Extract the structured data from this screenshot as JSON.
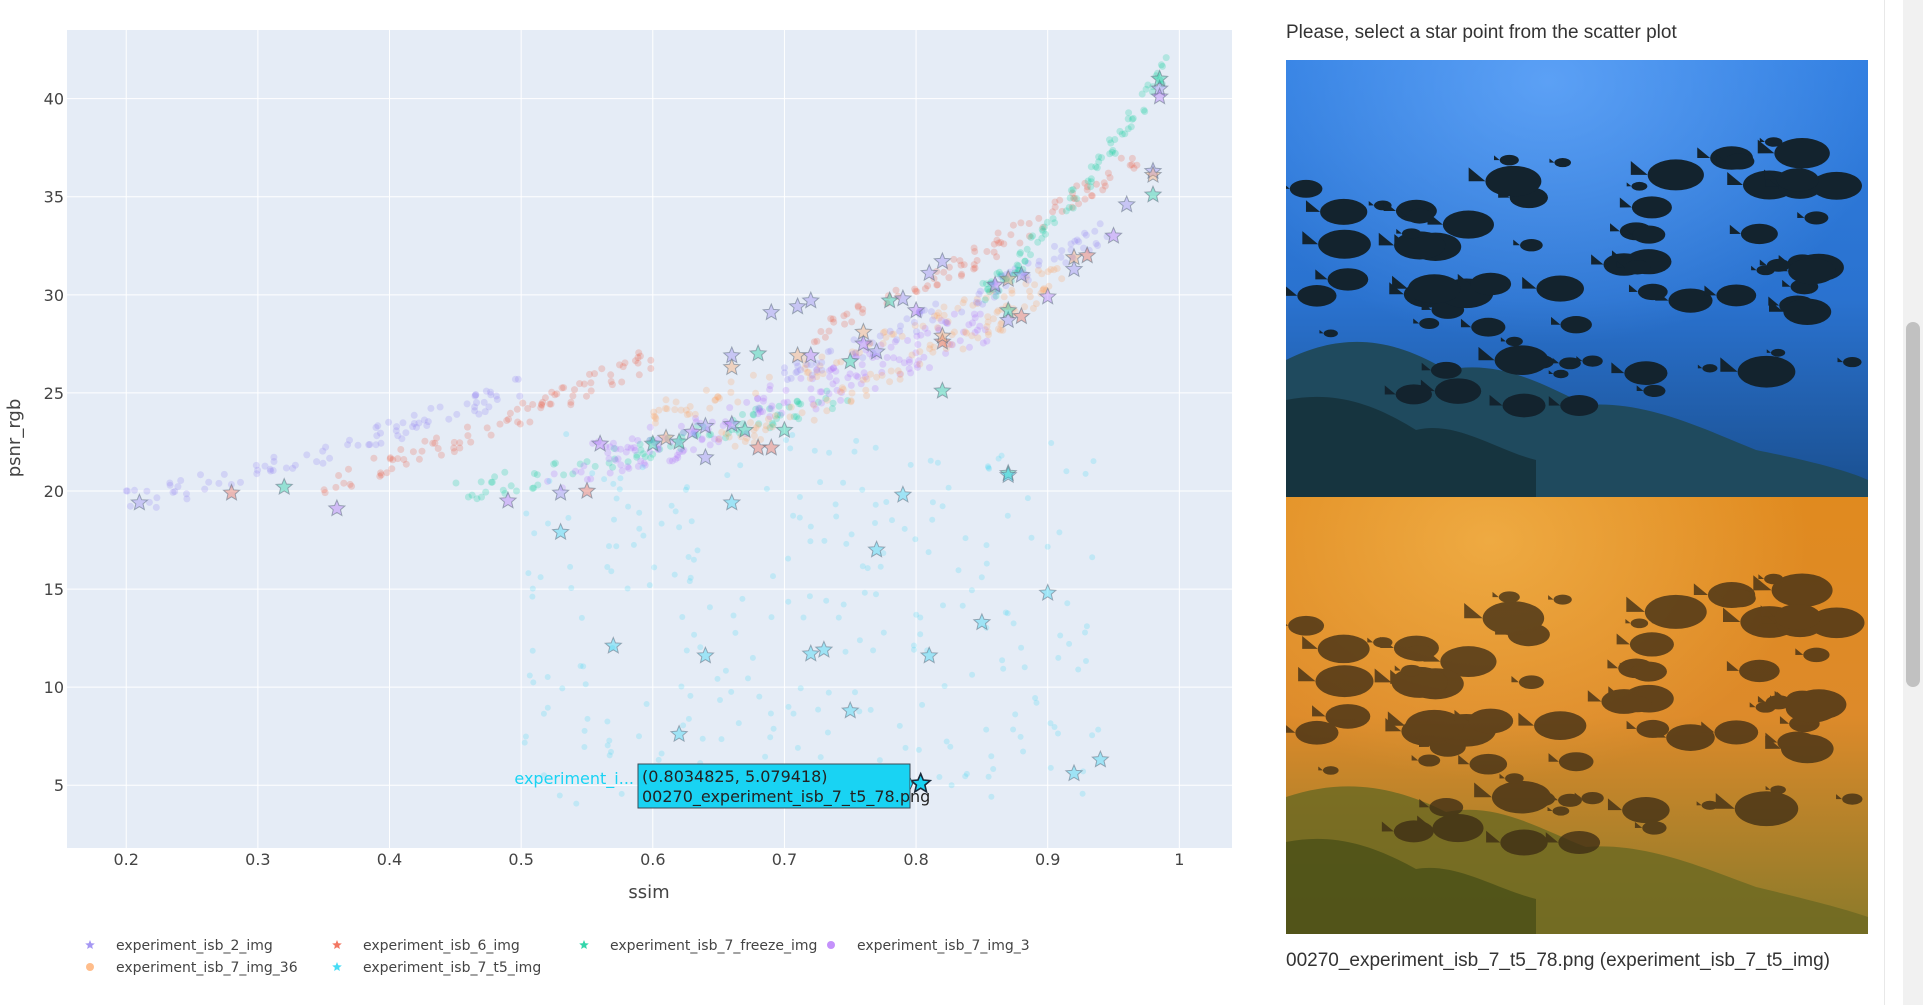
{
  "chart_data": {
    "type": "scatter",
    "xlabel": "ssim",
    "ylabel": "psnr_rgb",
    "xlim": [
      0.155,
      1.04
    ],
    "ylim": [
      1.8,
      43.5
    ],
    "x_ticks": [
      0.2,
      0.3,
      0.4,
      0.5,
      0.6,
      0.7,
      0.8,
      0.9,
      1
    ],
    "x_tick_labels": [
      "0.2",
      "0.3",
      "0.4",
      "0.5",
      "0.6",
      "0.7",
      "0.8",
      "0.9",
      "1"
    ],
    "y_ticks": [
      5,
      10,
      15,
      20,
      25,
      30,
      35,
      40
    ],
    "y_tick_labels": [
      "5",
      "10",
      "15",
      "20",
      "25",
      "30",
      "35",
      "40"
    ],
    "grid": true,
    "legend_position": "bottom",
    "series": [
      {
        "name": "experiment_isb_2_img",
        "color": "#8e7df0",
        "marker": "star",
        "points": [
          [
            0.21,
            19.4
          ],
          [
            0.53,
            19.9
          ],
          [
            0.64,
            21.7
          ],
          [
            0.64,
            23.3
          ],
          [
            0.66,
            26.9
          ],
          [
            0.69,
            29.1
          ],
          [
            0.71,
            29.4
          ],
          [
            0.72,
            29.7
          ],
          [
            0.77,
            27.1
          ],
          [
            0.79,
            29.8
          ],
          [
            0.81,
            31.1
          ],
          [
            0.82,
            31.7
          ],
          [
            0.87,
            28.7
          ],
          [
            0.88,
            31.0
          ],
          [
            0.92,
            31.3
          ],
          [
            0.96,
            34.6
          ],
          [
            0.98,
            36.3
          ],
          [
            0.985,
            40.5
          ]
        ]
      },
      {
        "name": "experiment_isb_6_img",
        "color": "#ef553b",
        "marker": "star",
        "points": [
          [
            0.28,
            19.9
          ],
          [
            0.55,
            20.0
          ],
          [
            0.68,
            22.2
          ],
          [
            0.69,
            22.2
          ],
          [
            0.82,
            27.6
          ],
          [
            0.88,
            28.9
          ],
          [
            0.93,
            32.0
          ]
        ]
      },
      {
        "name": "experiment_isb_7_freeze_img",
        "color": "#00cc96",
        "marker": "star",
        "points": [
          [
            0.32,
            20.2
          ],
          [
            0.6,
            22.4
          ],
          [
            0.62,
            22.5
          ],
          [
            0.67,
            23.1
          ],
          [
            0.68,
            27.0
          ],
          [
            0.7,
            23.1
          ],
          [
            0.75,
            26.6
          ],
          [
            0.78,
            29.7
          ],
          [
            0.82,
            25.1
          ],
          [
            0.87,
            29.2
          ],
          [
            0.87,
            20.9
          ],
          [
            0.98,
            35.1
          ],
          [
            0.985,
            41.0
          ]
        ]
      },
      {
        "name": "experiment_isb_7_img_3",
        "color": "#ab63fa",
        "marker": "star",
        "points": [
          [
            0.36,
            19.1
          ],
          [
            0.49,
            19.5
          ],
          [
            0.56,
            22.4
          ],
          [
            0.63,
            23.0
          ],
          [
            0.66,
            23.4
          ],
          [
            0.72,
            26.9
          ],
          [
            0.76,
            27.5
          ],
          [
            0.8,
            29.2
          ],
          [
            0.86,
            30.5
          ],
          [
            0.9,
            29.9
          ],
          [
            0.95,
            33.0
          ],
          [
            0.985,
            40.1
          ]
        ]
      },
      {
        "name": "experiment_isb_7_img_36",
        "color": "#ffa15a",
        "marker": "star",
        "points": [
          [
            0.61,
            22.7
          ],
          [
            0.66,
            26.3
          ],
          [
            0.71,
            26.9
          ],
          [
            0.76,
            28.1
          ],
          [
            0.82,
            27.9
          ],
          [
            0.87,
            30.8
          ],
          [
            0.92,
            31.9
          ],
          [
            0.98,
            36.1
          ]
        ]
      },
      {
        "name": "experiment_isb_7_t5_img",
        "color": "#19d3f3",
        "marker": "star",
        "points": [
          [
            0.53,
            17.9
          ],
          [
            0.57,
            12.1
          ],
          [
            0.62,
            7.6
          ],
          [
            0.64,
            11.6
          ],
          [
            0.66,
            19.4
          ],
          [
            0.72,
            11.7
          ],
          [
            0.73,
            11.9
          ],
          [
            0.75,
            8.8
          ],
          [
            0.77,
            17.0
          ],
          [
            0.79,
            19.8
          ],
          [
            0.81,
            11.6
          ],
          [
            0.8034825,
            5.079418
          ],
          [
            0.85,
            13.3
          ],
          [
            0.87,
            20.8
          ],
          [
            0.9,
            14.8
          ],
          [
            0.92,
            5.6
          ],
          [
            0.94,
            6.3
          ]
        ]
      }
    ],
    "hover": {
      "series_label": "experiment_i...",
      "line1": "(0.8034825, 5.079418)",
      "line2": "00270_experiment_isb_7_t5_78.png",
      "x": 0.8034825,
      "y": 5.079418
    }
  },
  "panel": {
    "prompt": "Please, select a star point from the scatter plot",
    "caption": "00270_experiment_isb_7_t5_78.png (experiment_isb_7_t5_img)"
  }
}
